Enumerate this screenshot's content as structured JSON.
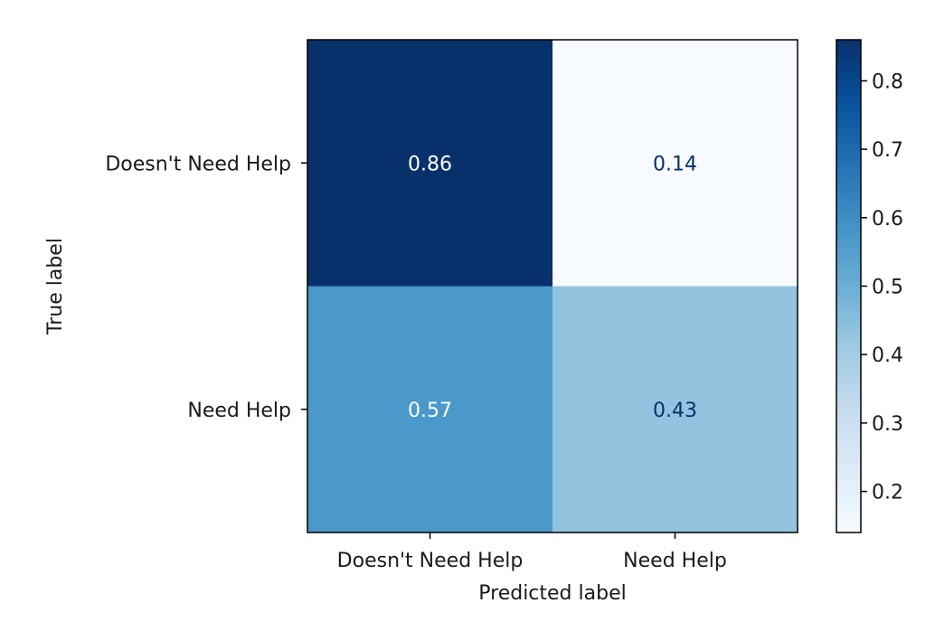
{
  "chart_data": {
    "type": "heatmap",
    "title": "",
    "xlabel": "Predicted label",
    "ylabel": "True label",
    "x_categories": [
      "Doesn't Need Help",
      "Need Help"
    ],
    "y_categories": [
      "Doesn't Need Help",
      "Need Help"
    ],
    "values": [
      [
        0.86,
        0.14
      ],
      [
        0.57,
        0.43
      ]
    ],
    "value_labels": [
      [
        "0.86",
        "0.14"
      ],
      [
        "0.57",
        "0.43"
      ]
    ],
    "colormap": "Blues",
    "colorbar": {
      "vmin": 0.14,
      "vmax": 0.86,
      "ticks": [
        0.2,
        0.3,
        0.4,
        0.5,
        0.6,
        0.7,
        0.8
      ],
      "tick_labels": [
        "0.2",
        "0.3",
        "0.4",
        "0.5",
        "0.6",
        "0.7",
        "0.8"
      ]
    }
  }
}
